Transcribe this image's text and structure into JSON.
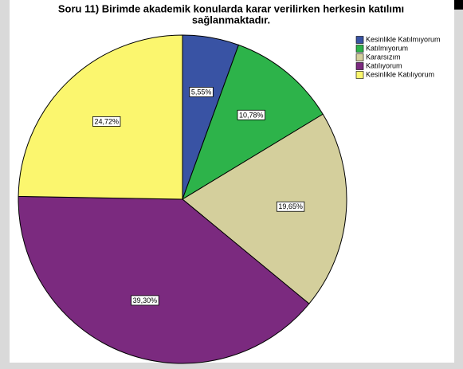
{
  "chart_data": {
    "type": "pie",
    "title": [
      "Soru 11) Birimde akademik konularda karar verilirken  herkesin katılımı",
      "sağlanmaktadır."
    ],
    "categories": [
      "Kesinlikle Katılmıyorum",
      "Katılmıyorum",
      "Kararsızım",
      "Katılıyorum",
      "Kesinlikle Katılıyorum"
    ],
    "values": [
      5.55,
      10.78,
      19.65,
      39.3,
      24.72
    ],
    "value_labels": [
      "5,55%",
      "10,78%",
      "19,65%",
      "39,30%",
      "24,72%"
    ],
    "colors": [
      "#3953a4",
      "#2db34a",
      "#d4cf9c",
      "#7b2a7f",
      "#fbf66e"
    ],
    "legend": "top-right"
  }
}
